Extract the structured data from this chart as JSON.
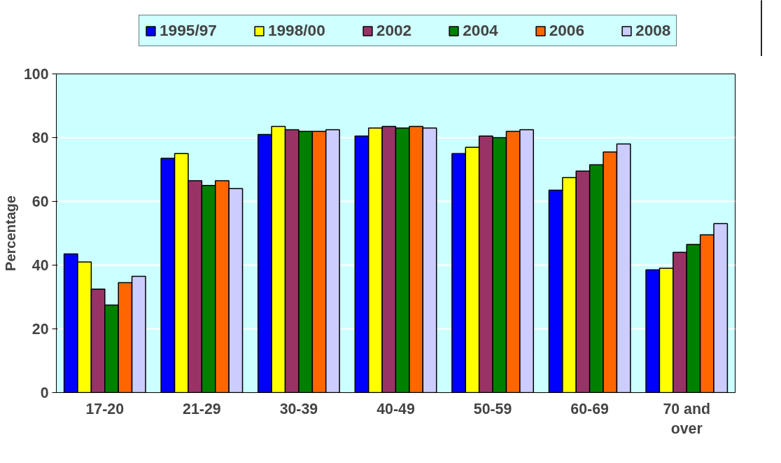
{
  "chart_data": {
    "type": "bar",
    "ylabel": "Percentage",
    "categories": [
      "17-20",
      "21-29",
      "30-39",
      "40-49",
      "50-59",
      "60-69",
      "70 and over"
    ],
    "series": [
      {
        "name": "1995/97",
        "color": "#0000ff",
        "values": [
          43.5,
          73.5,
          81,
          80.5,
          75,
          63.5,
          38.5
        ]
      },
      {
        "name": "1998/00",
        "color": "#ffff00",
        "values": [
          41,
          75,
          83.5,
          83,
          77,
          67.5,
          39
        ]
      },
      {
        "name": "2002",
        "color": "#993366",
        "values": [
          32.5,
          66.5,
          82.5,
          83.5,
          80.5,
          69.5,
          44
        ]
      },
      {
        "name": "2004",
        "color": "#008000",
        "values": [
          27.5,
          65,
          82,
          83,
          80,
          71.5,
          46.5
        ]
      },
      {
        "name": "2006",
        "color": "#ff6600",
        "values": [
          34.5,
          66.5,
          82,
          83.5,
          82,
          75.5,
          49.5
        ]
      },
      {
        "name": "2008",
        "color": "#ccccff",
        "values": [
          36.5,
          64,
          82.5,
          83,
          82.5,
          78,
          53
        ]
      }
    ],
    "ylim": [
      0,
      100
    ],
    "yticks": [
      0,
      20,
      40,
      60,
      80,
      100
    ],
    "grid": "y",
    "legend": "top"
  }
}
